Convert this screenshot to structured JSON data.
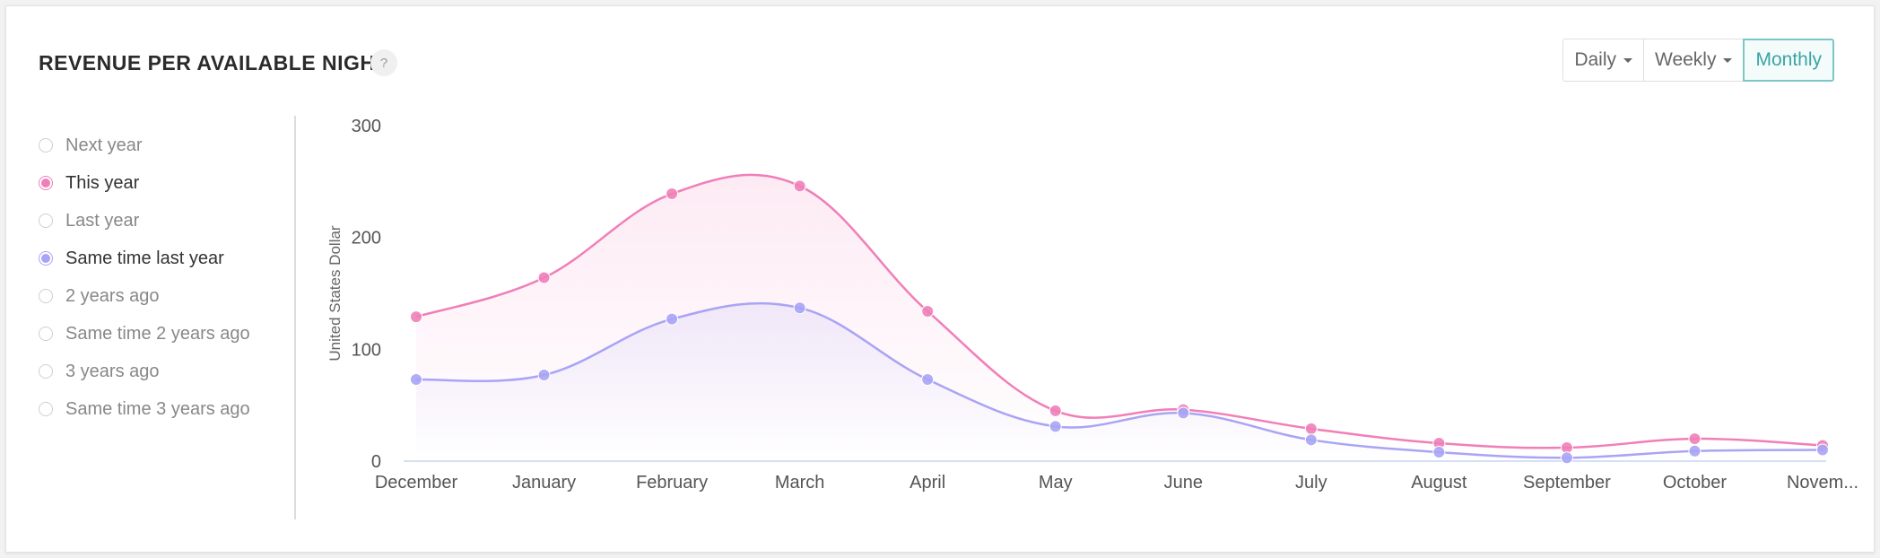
{
  "header": {
    "title": "REVENUE PER AVAILABLE NIGHT",
    "help_label": "?"
  },
  "period": {
    "buttons": [
      {
        "label": "Daily",
        "active": false,
        "dropdown": true
      },
      {
        "label": "Weekly",
        "active": false,
        "dropdown": true
      },
      {
        "label": "Monthly",
        "active": true,
        "dropdown": false
      }
    ]
  },
  "legend": {
    "items": [
      {
        "label": "Next year",
        "checked": false,
        "color": ""
      },
      {
        "label": "This year",
        "checked": true,
        "color": "#f07fb8"
      },
      {
        "label": "Last year",
        "checked": false,
        "color": ""
      },
      {
        "label": "Same time last year",
        "checked": true,
        "color": "#a9a4f5"
      },
      {
        "label": "2 years ago",
        "checked": false,
        "color": ""
      },
      {
        "label": "Same time 2 years ago",
        "checked": false,
        "color": ""
      },
      {
        "label": "3 years ago",
        "checked": false,
        "color": ""
      },
      {
        "label": "Same time 3 years ago",
        "checked": false,
        "color": ""
      }
    ]
  },
  "chart_data": {
    "type": "area",
    "categories": [
      "December",
      "January",
      "February",
      "March",
      "April",
      "May",
      "June",
      "July",
      "August",
      "September",
      "October",
      "Novem..."
    ],
    "series": [
      {
        "name": "This year",
        "color": "#f07fb8",
        "values": [
          129,
          164,
          239,
          246,
          134,
          45,
          46,
          29,
          16,
          12,
          20,
          14
        ]
      },
      {
        "name": "Same time last year",
        "color": "#a9a4f5",
        "values": [
          73,
          77,
          127,
          137,
          73,
          31,
          43,
          19,
          8,
          3,
          9,
          10
        ]
      }
    ],
    "yticks": [
      0,
      100,
      200,
      300
    ],
    "ylim": [
      0,
      300
    ],
    "ylabel": "United States Dollar",
    "xlabel": "",
    "grid": false
  }
}
